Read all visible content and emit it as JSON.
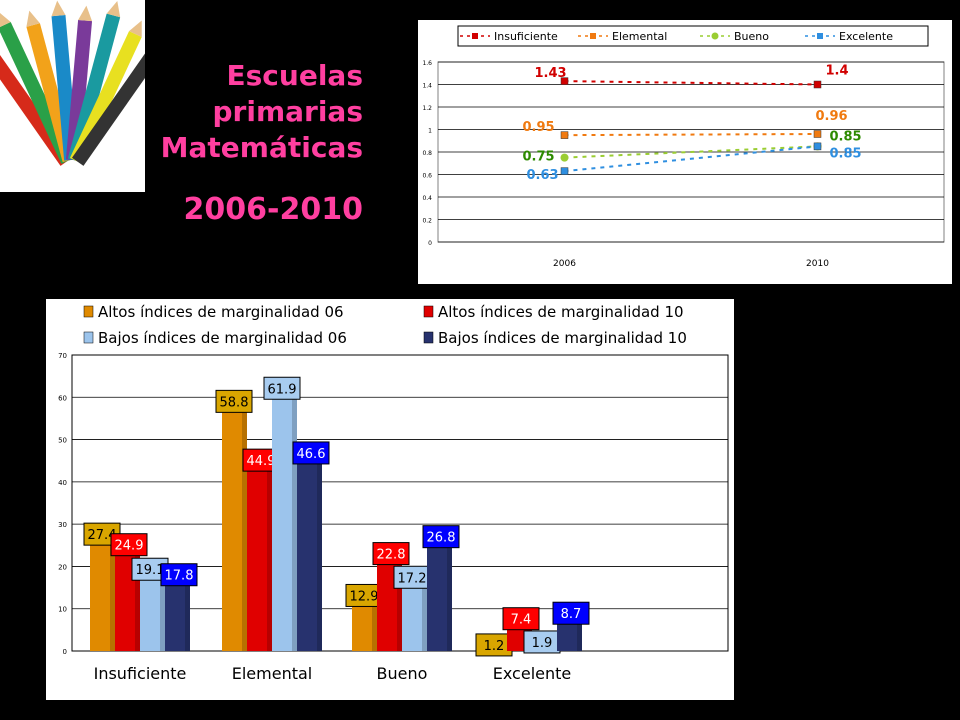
{
  "slide": {
    "title_lines": [
      "Escuelas",
      "primarias",
      "Matemáticas"
    ],
    "years": "2006-2010",
    "photo_icon": "colored-pencils-photo",
    "title_color": "#ff3fa0"
  },
  "chart_data": [
    {
      "type": "line",
      "x": [
        "2006",
        "2010"
      ],
      "ylim": [
        0,
        1.6
      ],
      "yticks": [
        "0",
        "0.2",
        "0.4",
        "0.6",
        "0.8",
        "1",
        "1.2",
        "1.4",
        "1.6"
      ],
      "grid": true,
      "legend": "top",
      "series": [
        {
          "name": "Insuficiente",
          "values": [
            1.43,
            1.4
          ],
          "labels": [
            "1.43",
            "1.4"
          ],
          "color": "#d10000"
        },
        {
          "name": "Elemental",
          "values": [
            0.95,
            0.96
          ],
          "labels": [
            "0.95",
            "0.96"
          ],
          "color": "#f07a10"
        },
        {
          "name": "Bueno",
          "values": [
            0.75,
            0.85
          ],
          "labels": [
            "0.75",
            "0.85"
          ],
          "color": "#9acd32",
          "label_color": "#2d8a00"
        },
        {
          "name": "Excelente",
          "values": [
            0.63,
            0.85
          ],
          "labels": [
            "0.63",
            "0.85"
          ],
          "color": "#2f8fe0"
        }
      ]
    },
    {
      "type": "bar",
      "categories": [
        "Insuficiente",
        "Elemental",
        "Bueno",
        "Excelente"
      ],
      "ylim": [
        0,
        70
      ],
      "yticks": [
        "0",
        "10",
        "20",
        "30",
        "40",
        "50",
        "60",
        "70"
      ],
      "grid": true,
      "legend": "top",
      "series": [
        {
          "name": "Altos índices de marginalidad 06",
          "values": [
            27.4,
            58.8,
            12.9,
            1.2
          ],
          "labels": [
            "27.4",
            "58.8",
            "12.9",
            "1.2"
          ],
          "color": "#e08a00",
          "label_bg": "#d9a600",
          "label_fg": "#000000"
        },
        {
          "name": "Altos índices de marginalidad 10",
          "values": [
            24.9,
            44.9,
            22.8,
            7.4
          ],
          "labels": [
            "24.9",
            "44.9",
            "22.8",
            "7.4"
          ],
          "color": "#e00000",
          "label_bg": "#ff0000",
          "label_fg": "#ffffff"
        },
        {
          "name": "Bajos índices de marginalidad 06",
          "values": [
            19.1,
            61.9,
            17.2,
            1.9
          ],
          "labels": [
            "19.1",
            "61.9",
            "17.2",
            "1.9"
          ],
          "color": "#9cc4ec",
          "label_bg": "#a8ccf0",
          "label_fg": "#000000"
        },
        {
          "name": "Bajos índices de marginalidad 10",
          "values": [
            17.8,
            46.6,
            26.8,
            8.7
          ],
          "labels": [
            "17.8",
            "46.6",
            "26.8",
            "8.7"
          ],
          "color": "#27326e",
          "label_bg": "#0000ff",
          "label_fg": "#ffffff"
        }
      ]
    }
  ]
}
